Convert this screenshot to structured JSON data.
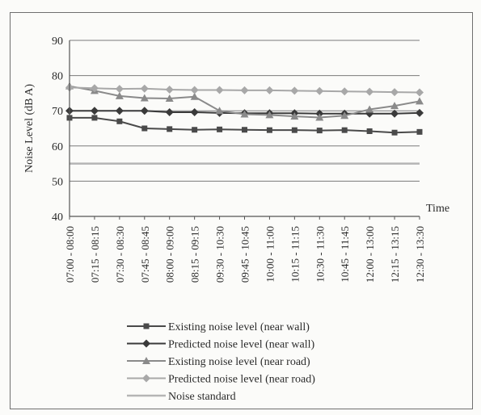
{
  "chart_data": {
    "type": "line",
    "xlabel": "Time",
    "ylabel": "Noise Level (dB A)",
    "ylim": [
      40,
      90
    ],
    "yticks": [
      40,
      50,
      60,
      70,
      80,
      90
    ],
    "grid": true,
    "legend_position": "bottom",
    "categories": [
      "07:00 - 08:00",
      "07:15 - 08:15",
      "07:30 - 08:30",
      "07:45 - 08:45",
      "08:00 - 09:00",
      "08:15 - 09:15",
      "09:30 - 10:30",
      "09:45 - 10:45",
      "10:00 - 11:00",
      "10:15 - 11:15",
      "10:30 - 11:30",
      "10:45 - 11:45",
      "12:00 - 13:00",
      "12:15 - 13:15",
      "12:30 - 13:30"
    ],
    "series": [
      {
        "name": "Existing noise level (near wall)",
        "marker": "square",
        "color": "#4a4a4a",
        "values": [
          68,
          68,
          67,
          65,
          64.8,
          64.6,
          64.7,
          64.6,
          64.5,
          64.5,
          64.4,
          64.5,
          64.2,
          63.8,
          64
        ]
      },
      {
        "name": "Predicted noise level (near wall)",
        "marker": "diamond",
        "color": "#3a3a3a",
        "values": [
          70,
          70,
          70,
          70,
          69.6,
          69.6,
          69.4,
          69.3,
          69.3,
          69.3,
          69.2,
          69.2,
          69.2,
          69.2,
          69.4
        ]
      },
      {
        "name": "Existing noise level (near road)",
        "marker": "triangle",
        "color": "#8a8a8a",
        "values": [
          77,
          75.7,
          74.2,
          73.6,
          73.5,
          74,
          70,
          69,
          68.8,
          68.4,
          68.1,
          68.6,
          70.4,
          71.4,
          72.7
        ]
      },
      {
        "name": "Predicted noise level (near road)",
        "marker": "diamond",
        "color": "#a8a8a8",
        "values": [
          76.6,
          76.4,
          76.2,
          76.3,
          76,
          75.9,
          75.9,
          75.8,
          75.8,
          75.7,
          75.6,
          75.5,
          75.4,
          75.3,
          75.2
        ]
      },
      {
        "name": "Noise standard",
        "marker": "none",
        "color": "#b5b5b5",
        "values": [
          55,
          55,
          55,
          55,
          55,
          55,
          55,
          55,
          55,
          55,
          55,
          55,
          55,
          55,
          55
        ]
      }
    ]
  }
}
